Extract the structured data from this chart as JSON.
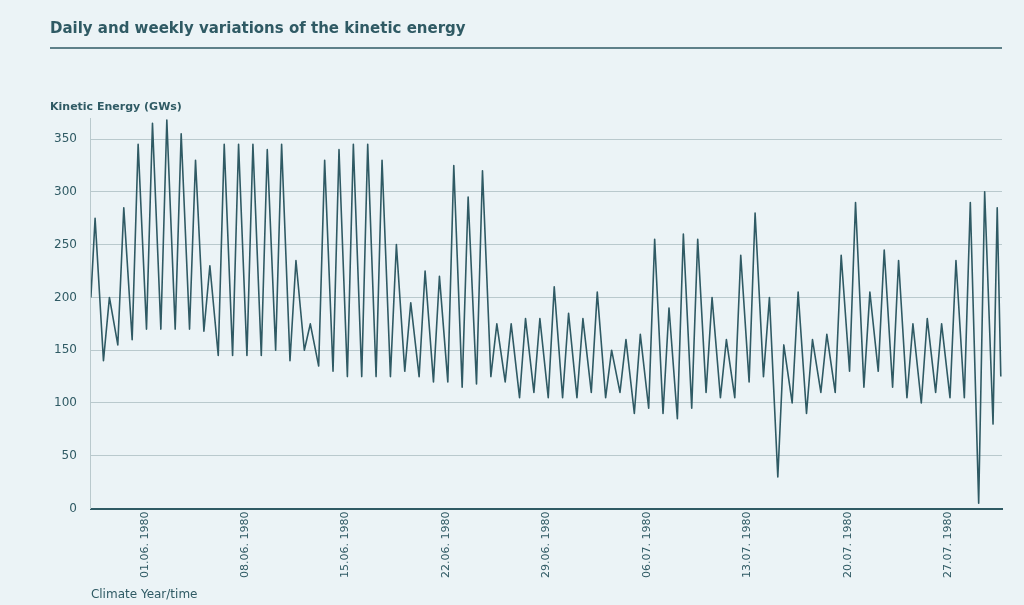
{
  "chart_data": {
    "type": "line",
    "title": "Daily and weekly variations of the kinetic energy",
    "ylabel": "Kinetic Energy (GWs)",
    "xlabel": "Climate Year/time",
    "x": [
      "1980-05-28T06:00",
      "1980-05-28T13:00",
      "1980-05-29T03:00",
      "1980-05-29T13:00",
      "1980-05-30T03:00",
      "1980-05-30T13:00",
      "1980-05-31T03:00",
      "1980-05-31T13:00",
      "1980-06-01T03:00",
      "1980-06-01T13:00",
      "1980-06-02T03:00",
      "1980-06-02T13:00",
      "1980-06-03T03:00",
      "1980-06-03T13:00",
      "1980-06-04T03:00",
      "1980-06-04T13:00",
      "1980-06-05T03:00",
      "1980-06-05T13:00",
      "1980-06-06T03:00",
      "1980-06-06T13:00",
      "1980-06-07T03:00",
      "1980-06-07T13:00",
      "1980-06-08T03:00",
      "1980-06-08T13:00",
      "1980-06-09T03:00",
      "1980-06-09T13:00",
      "1980-06-10T03:00",
      "1980-06-10T13:00",
      "1980-06-11T03:00",
      "1980-06-11T13:00",
      "1980-06-12T03:00",
      "1980-06-12T13:00",
      "1980-06-13T03:00",
      "1980-06-13T13:00",
      "1980-06-14T03:00",
      "1980-06-14T13:00",
      "1980-06-15T03:00",
      "1980-06-15T13:00",
      "1980-06-16T03:00",
      "1980-06-16T13:00",
      "1980-06-17T03:00",
      "1980-06-17T13:00",
      "1980-06-18T03:00",
      "1980-06-18T13:00",
      "1980-06-19T03:00",
      "1980-06-19T13:00",
      "1980-06-20T03:00",
      "1980-06-20T13:00",
      "1980-06-21T03:00",
      "1980-06-21T13:00",
      "1980-06-22T03:00",
      "1980-06-22T13:00",
      "1980-06-23T03:00",
      "1980-06-23T13:00",
      "1980-06-24T03:00",
      "1980-06-24T13:00",
      "1980-06-25T03:00",
      "1980-06-25T13:00",
      "1980-06-26T03:00",
      "1980-06-26T13:00",
      "1980-06-27T03:00",
      "1980-06-27T13:00",
      "1980-06-28T03:00",
      "1980-06-28T13:00",
      "1980-06-29T03:00",
      "1980-06-29T13:00",
      "1980-06-30T03:00",
      "1980-06-30T13:00",
      "1980-07-01T03:00",
      "1980-07-01T13:00",
      "1980-07-02T03:00",
      "1980-07-02T13:00",
      "1980-07-03T03:00",
      "1980-07-03T13:00",
      "1980-07-04T03:00",
      "1980-07-04T13:00",
      "1980-07-05T03:00",
      "1980-07-05T13:00",
      "1980-07-06T03:00",
      "1980-07-06T13:00",
      "1980-07-07T03:00",
      "1980-07-07T13:00",
      "1980-07-08T03:00",
      "1980-07-08T13:00",
      "1980-07-09T03:00",
      "1980-07-09T13:00",
      "1980-07-10T03:00",
      "1980-07-10T13:00",
      "1980-07-11T03:00",
      "1980-07-11T13:00",
      "1980-07-12T03:00",
      "1980-07-12T13:00",
      "1980-07-13T03:00",
      "1980-07-13T13:00",
      "1980-07-14T03:00",
      "1980-07-14T13:00",
      "1980-07-15T03:00",
      "1980-07-15T13:00",
      "1980-07-16T03:00",
      "1980-07-16T13:00",
      "1980-07-17T03:00",
      "1980-07-17T13:00",
      "1980-07-18T03:00",
      "1980-07-18T13:00",
      "1980-07-19T03:00",
      "1980-07-19T13:00",
      "1980-07-20T03:00",
      "1980-07-20T13:00",
      "1980-07-21T03:00",
      "1980-07-21T13:00",
      "1980-07-22T03:00",
      "1980-07-22T13:00",
      "1980-07-23T03:00",
      "1980-07-23T13:00",
      "1980-07-24T03:00",
      "1980-07-24T13:00",
      "1980-07-25T03:00",
      "1980-07-25T13:00",
      "1980-07-26T03:00",
      "1980-07-26T13:00",
      "1980-07-27T03:00",
      "1980-07-27T13:00",
      "1980-07-28T03:00",
      "1980-07-28T13:00",
      "1980-07-29T03:00",
      "1980-07-29T13:00",
      "1980-07-30T03:00",
      "1980-07-30T10:00",
      "1980-07-30T16:00"
    ],
    "series": [
      {
        "color": "#2f5a64",
        "values": [
          200,
          275,
          140,
          200,
          155,
          285,
          160,
          345,
          170,
          365,
          170,
          368,
          170,
          355,
          170,
          330,
          168,
          230,
          145,
          345,
          145,
          345,
          145,
          345,
          145,
          340,
          150,
          345,
          140,
          235,
          150,
          175,
          135,
          330,
          130,
          340,
          125,
          345,
          125,
          345,
          125,
          330,
          125,
          250,
          130,
          195,
          125,
          225,
          120,
          220,
          120,
          325,
          115,
          295,
          118,
          320,
          125,
          175,
          120,
          175,
          105,
          180,
          110,
          180,
          105,
          210,
          105,
          185,
          105,
          180,
          110,
          205,
          105,
          150,
          110,
          160,
          90,
          165,
          95,
          255,
          90,
          190,
          85,
          260,
          95,
          255,
          110,
          200,
          105,
          160,
          105,
          240,
          120,
          280,
          125,
          200,
          30,
          155,
          100,
          205,
          90,
          160,
          110,
          165,
          110,
          240,
          130,
          290,
          115,
          205,
          130,
          245,
          115,
          235,
          105,
          175,
          100,
          180,
          110,
          175,
          105,
          235,
          105,
          290,
          5,
          300,
          80,
          285,
          125
        ]
      }
    ],
    "xlim": [
      "1980-05-28T06:00",
      "1980-07-30T18:00"
    ],
    "xticks": [
      {
        "value": "1980-06-01T00:00",
        "label": "01.06. 1980"
      },
      {
        "value": "1980-06-08T00:00",
        "label": "08.06. 1980"
      },
      {
        "value": "1980-06-15T00:00",
        "label": "15.06. 1980"
      },
      {
        "value": "1980-06-22T00:00",
        "label": "22.06. 1980"
      },
      {
        "value": "1980-06-29T00:00",
        "label": "29.06. 1980"
      },
      {
        "value": "1980-07-06T00:00",
        "label": "06.07. 1980"
      },
      {
        "value": "1980-07-13T00:00",
        "label": "13.07. 1980"
      },
      {
        "value": "1980-07-20T00:00",
        "label": "20.07. 1980"
      },
      {
        "value": "1980-07-27T00:00",
        "label": "27.07. 1980"
      }
    ],
    "ylim": [
      0,
      370
    ],
    "yticks": [
      0,
      50,
      100,
      150,
      200,
      250,
      300,
      350
    ],
    "grid": "y",
    "legend": false,
    "marker": "none",
    "line_style": "solid"
  }
}
